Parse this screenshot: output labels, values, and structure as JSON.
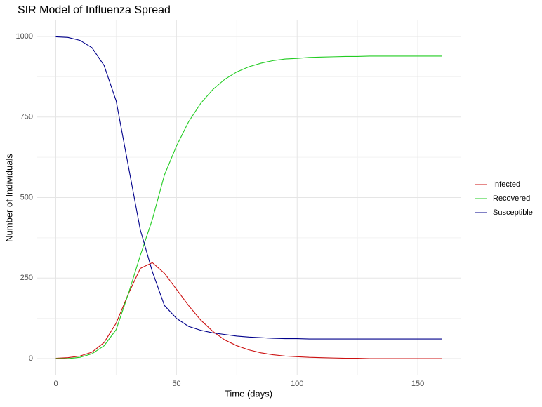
{
  "chart_data": {
    "type": "line",
    "title": "SIR Model of Influenza Spread",
    "x_label": "Time (days)",
    "y_label": "Number of Individuals",
    "x": [
      0,
      5,
      10,
      15,
      20,
      25,
      30,
      35,
      40,
      45,
      50,
      55,
      60,
      65,
      70,
      75,
      80,
      85,
      90,
      95,
      100,
      105,
      110,
      115,
      120,
      125,
      130,
      135,
      140,
      145,
      150,
      155,
      160
    ],
    "series": [
      {
        "name": "Infected",
        "color": "#cc1111",
        "values": [
          1,
          3,
          8,
          20,
          50,
          110,
          200,
          280,
          298,
          265,
          215,
          165,
          120,
          85,
          58,
          40,
          27,
          18,
          12,
          8,
          6,
          4,
          3,
          2,
          1,
          1,
          0,
          0,
          0,
          0,
          0,
          0,
          0
        ]
      },
      {
        "name": "Recovered",
        "color": "#22cc22",
        "values": [
          0,
          0,
          4,
          15,
          40,
          90,
          200,
          320,
          432,
          570,
          660,
          735,
          792,
          835,
          867,
          890,
          906,
          917,
          925,
          930,
          932,
          935,
          936,
          937,
          938,
          938,
          939,
          939,
          939,
          939,
          939,
          939,
          939
        ]
      },
      {
        "name": "Susceptible",
        "color": "#00008b",
        "values": [
          999,
          997,
          988,
          965,
          910,
          800,
          600,
          400,
          270,
          165,
          125,
          100,
          88,
          80,
          75,
          70,
          67,
          65,
          63,
          62,
          62,
          61,
          61,
          61,
          61,
          61,
          61,
          61,
          61,
          61,
          61,
          61,
          61
        ]
      }
    ],
    "xlim": [
      -8,
      168
    ],
    "ylim": [
      -50,
      1050
    ],
    "xticks": [
      0,
      50,
      100,
      150
    ],
    "yticks": [
      0,
      250,
      500,
      750,
      1000
    ],
    "x_minor_ticks": [
      25,
      75,
      125
    ],
    "y_minor_ticks": [
      125,
      375,
      625,
      875
    ],
    "grid": true,
    "legend": "right"
  }
}
